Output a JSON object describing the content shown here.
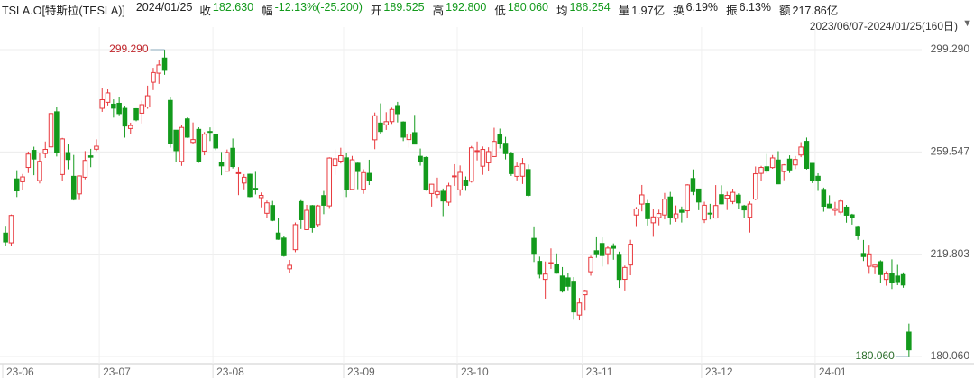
{
  "header": {
    "symbol": "TSLA.O[特斯拉(TESLA)]",
    "date": "2024/01/25",
    "fields": [
      {
        "label": "收",
        "value": "182.630",
        "color": "#139a1c"
      },
      {
        "label": "幅",
        "value": "-12.13%(-25.200)",
        "color": "#139a1c"
      },
      {
        "label": "开",
        "value": "189.525",
        "color": "#139a1c"
      },
      {
        "label": "高",
        "value": "192.800",
        "color": "#139a1c"
      },
      {
        "label": "低",
        "value": "180.060",
        "color": "#139a1c"
      },
      {
        "label": "均",
        "value": "186.254",
        "color": "#139a1c"
      },
      {
        "label": "量",
        "value": "1.97亿",
        "color": "#222222"
      },
      {
        "label": "换",
        "value": "6.19%",
        "color": "#222222"
      },
      {
        "label": "振",
        "value": "6.13%",
        "color": "#222222"
      },
      {
        "label": "额",
        "value": "217.86亿",
        "color": "#222222"
      }
    ],
    "range": "2023/06/07-2024/01/25(160日)"
  },
  "chart_data": {
    "type": "candlestick",
    "categories": [
      "23-06",
      null,
      null,
      null,
      null,
      null,
      null,
      null,
      null,
      null,
      null,
      null,
      null,
      null,
      null,
      null,
      null,
      "23-07",
      null,
      null,
      null,
      null,
      null,
      null,
      null,
      null,
      null,
      null,
      null,
      null,
      null,
      null,
      null,
      null,
      null,
      null,
      null,
      "23-08",
      null,
      null,
      null,
      null,
      null,
      null,
      null,
      null,
      null,
      null,
      null,
      null,
      null,
      null,
      null,
      null,
      null,
      null,
      null,
      null,
      null,
      null,
      "23-09",
      null,
      null,
      null,
      null,
      null,
      null,
      null,
      null,
      null,
      null,
      null,
      null,
      null,
      null,
      null,
      null,
      null,
      null,
      null,
      "23-10",
      null,
      null,
      null,
      null,
      null,
      null,
      null,
      null,
      null,
      null,
      null,
      null,
      null,
      null,
      null,
      null,
      null,
      null,
      null,
      null,
      null,
      "23-11",
      null,
      null,
      null,
      null,
      null,
      null,
      null,
      null,
      null,
      null,
      null,
      null,
      null,
      null,
      null,
      null,
      null,
      null,
      null,
      null,
      "23-12",
      null,
      null,
      null,
      null,
      null,
      null,
      null,
      null,
      null,
      null,
      null,
      null,
      null,
      null,
      null,
      null,
      null,
      null,
      null,
      "24-01",
      null,
      null,
      null,
      null,
      null,
      null,
      null,
      null,
      null,
      null,
      null,
      null,
      null,
      null,
      null,
      null
    ],
    "open": [
      228.0,
      224.22,
      249.07,
      247.94,
      253.51,
      260.17,
      248.4,
      258.92,
      261.5,
      275.13,
      250.77,
      259.29,
      250.07,
      243.24,
      249.7,
      258.03,
      260.6,
      276.49,
      278.82,
      278.09,
      278.43,
      276.47,
      268.65,
      276.33,
      274.59,
      277.01,
      286.63,
      290.15,
      296.04,
      279.56,
      268.0,
      255.85,
      272.38,
      263.25,
      268.31,
      259.86,
      267.48,
      266.26,
      255.57,
      252.04,
      260.97,
      251.45,
      247.45,
      250.87,
      245.4,
      241.77,
      235.7,
      238.73,
      228.02,
      226.06,
      214.12,
      221.55,
      240.25,
      229.34,
      238.66,
      231.31,
      242.58,
      238.58,
      254.2,
      255.98,
      257.26,
      245.0,
      255.14,
      245.07,
      251.22,
      264.27,
      270.76,
      270.07,
      271.32,
      277.55,
      271.16,
      264.35,
      267.04,
      257.85,
      257.4,
      243.38,
      242.98,
      244.26,
      240.02,
      250.0,
      244.81,
      248.61,
      248.14,
      260.0,
      253.98,
      255.31,
      257.75,
      266.2,
      262.92,
      258.9,
      250.05,
      250.1,
      252.7,
      225.95,
      217.01,
      210.0,
      216.5,
      215.88,
      211.32,
      210.6,
      209.28,
      196.12,
      204.04,
      212.97,
      221.15,
      223.98,
      219.98,
      223.15,
      219.75,
      210.03,
      215.6,
      235.03,
      239.29,
      239.49,
      232.0,
      234.04,
      235.04,
      242.04,
      233.75,
      236.89,
      236.68,
      249.21,
      245.14,
      233.14,
      235.75,
      233.87,
      242.92,
      241.55,
      240.27,
      242.74,
      238.55,
      234.19,
      241.22,
      251.21,
      253.78,
      253.48,
      256.41,
      251.9,
      256.76,
      254.49,
      258.35,
      263.66,
      255.1,
      250.08,
      244.98,
      239.25,
      236.86,
      236.14,
      238.11,
      235.1,
      230.57,
      220.08,
      215.1,
      214.86,
      216.88,
      209.99,
      212.26,
      211.3,
      211.88,
      189.525
    ],
    "high": [
      230.83,
      235.23,
      252.42,
      250.97,
      259.68,
      261.57,
      258.95,
      263.6,
      274.75,
      276.99,
      265.0,
      262.45,
      258.37,
      250.39,
      259.88,
      260.74,
      264.45,
      284.25,
      283.85,
      279.97,
      280.78,
      277.52,
      270.9,
      276.52,
      279.45,
      285.3,
      292.23,
      295.26,
      299.29,
      280.93,
      268.0,
      269.85,
      272.9,
      271.0,
      269.13,
      267.25,
      269.08,
      266.47,
      259.52,
      260.49,
      264.77,
      253.65,
      250.92,
      251.1,
      251.8,
      243.79,
      240.66,
      240.5,
      233.97,
      226.74,
      217.58,
      232.13,
      240.82,
      238.98,
      238.92,
      239.0,
      244.38,
      257.48,
      260.51,
      261.18,
      259.08,
      258.0,
      255.39,
      252.81,
      256.52,
      274.85,
      278.39,
      274.98,
      276.71,
      278.98,
      271.44,
      267.85,
      273.93,
      260.86,
      257.79,
      247.1,
      249.55,
      245.33,
      247.55,
      254.77,
      254.28,
      250.02,
      261.86,
      263.6,
      261.65,
      261.36,
      268.94,
      268.6,
      265.41,
      259.6,
      255.4,
      257.18,
      254.63,
      230.61,
      218.86,
      216.98,
      222.05,
      220.1,
      214.8,
      212.41,
      210.88,
      202.8,
      205.99,
      219.2,
      226.37,
      226.32,
      223.12,
      224.0,
      220.8,
      215.38,
      225.4,
      238.14,
      246.7,
      240.88,
      237.39,
      237.1,
      243.62,
      244.01,
      238.75,
      238.33,
      247.0,
      252.75,
      245.22,
      240.19,
      239.37,
      246.66,
      246.57,
      244.08,
      245.27,
      243.44,
      238.99,
      240.3,
      253.88,
      254.13,
      258.74,
      258.34,
      259.84,
      254.8,
      258.22,
      257.97,
      263.34,
      265.13,
      255.19,
      251.25,
      245.68,
      242.7,
      240.12,
      241.25,
      238.96,
      235.5,
      230.93,
      225.34,
      223.49,
      215.67,
      217.45,
      213.19,
      217.8,
      215.65,
      212.73,
      192.8
    ],
    "low": [
      223.2,
      223.01,
      242.02,
      244.59,
      251.34,
      250.5,
      247.29,
      257.21,
      261.12,
      257.78,
      248.25,
      252.8,
      240.7,
      240.85,
      248.89,
      253.61,
      259.89,
      275.11,
      277.6,
      272.88,
      273.77,
      265.1,
      266.37,
      271.46,
      270.6,
      276.31,
      283.57,
      286.01,
      289.52,
      261.2,
      255.8,
      254.12,
      265.0,
      262.6,
      255.3,
      258.23,
      263.78,
      260.25,
      250.49,
      252.0,
      253.11,
      242.76,
      245.01,
      241.9,
      243.0,
      238.02,
      233.75,
      232.61,
      225.38,
      218.83,
      212.36,
      220.58,
      229.55,
      229.29,
      228.18,
      230.35,
      235.35,
      237.77,
      250.59,
      255.05,
      242.01,
      244.86,
      245.06,
      243.27,
      246.67,
      260.61,
      266.6,
      268.1,
      270.42,
      271.0,
      263.76,
      261.2,
      262.46,
      254.21,
      244.48,
      238.31,
      241.66,
      234.58,
      238.65,
      246.35,
      242.62,
      244.45,
      247.6,
      256.25,
      250.65,
      252.05,
      257.65,
      260.9,
      256.63,
      250.22,
      248.48,
      247.08,
      242.08,
      216.78,
      210.42,
      202.51,
      214.11,
      212.2,
      204.88,
      205.77,
      194.67,
      194.07,
      197.85,
      211.45,
      218.4,
      215.0,
      215.72,
      217.64,
      206.68,
      205.69,
      211.61,
      230.72,
      236.45,
      230.96,
      226.54,
      231.02,
      233.34,
      231.4,
      232.33,
      232.1,
      234.01,
      242.76,
      236.91,
      231.9,
      233.29,
      233.7,
      239.17,
      236.98,
      239.27,
      237.45,
      233.87,
      228.2,
      240.79,
      248.3,
      251.36,
      253.01,
      247.0,
      248.55,
      251.37,
      252.91,
      257.52,
      252.71,
      247.43,
      244.41,
      236.32,
      237.73,
      234.9,
      235.3,
      232.04,
      231.29,
      225.37,
      217.15,
      212.18,
      212.01,
      208.74,
      207.56,
      206.27,
      207.75,
      206.77,
      180.06
    ],
    "close": [
      224.57,
      234.86,
      244.4,
      249.83,
      258.71,
      256.79,
      255.9,
      260.54,
      274.45,
      259.46,
      264.61,
      256.6,
      241.05,
      250.21,
      256.24,
      257.5,
      261.77,
      279.82,
      282.48,
      276.54,
      274.43,
      269.61,
      269.79,
      271.99,
      277.9,
      281.38,
      290.38,
      293.34,
      291.26,
      262.9,
      260.02,
      269.06,
      265.28,
      264.35,
      255.71,
      266.44,
      267.43,
      261.07,
      254.11,
      259.32,
      253.86,
      251.45,
      249.7,
      242.19,
      245.34,
      242.65,
      239.76,
      232.96,
      225.6,
      219.22,
      215.49,
      231.28,
      233.19,
      236.86,
      230.04,
      238.59,
      238.82,
      257.18,
      256.9,
      258.08,
      245.01,
      256.49,
      251.92,
      251.49,
      248.5,
      273.58,
      267.48,
      271.3,
      276.04,
      274.39,
      265.28,
      266.5,
      262.59,
      255.7,
      244.88,
      246.99,
      244.12,
      240.5,
      246.38,
      250.22,
      251.6,
      246.53,
      261.16,
      260.05,
      260.53,
      259.67,
      263.62,
      262.99,
      258.87,
      251.12,
      253.92,
      254.85,
      242.68,
      220.11,
      211.99,
      212.08,
      216.52,
      212.42,
      205.76,
      207.3,
      197.36,
      200.84,
      205.66,
      218.51,
      219.96,
      219.27,
      222.18,
      222.11,
      209.98,
      214.65,
      223.71,
      237.41,
      242.84,
      233.59,
      234.3,
      235.6,
      241.2,
      234.21,
      235.45,
      236.08,
      246.72,
      244.14,
      240.08,
      238.83,
      235.58,
      238.72,
      239.37,
      242.64,
      243.84,
      239.74,
      237.01,
      239.29,
      251.05,
      253.5,
      252.08,
      257.22,
      247.14,
      254.5,
      252.54,
      256.61,
      261.44,
      253.18,
      248.48,
      248.42,
      238.45,
      237.93,
      237.49,
      240.45,
      234.96,
      233.94,
      227.22,
      218.89,
      219.91,
      215.55,
      211.88,
      212.19,
      208.8,
      209.14,
      207.83,
      182.63
    ],
    "up_color": "#e8383d",
    "down_color": "#139a1c",
    "ylim": [
      178.3,
      305.25
    ],
    "yticks": [
      {
        "value": 180.06,
        "label": "180.060"
      },
      219.803,
      259.547,
      {
        "value": 299.29,
        "label": "299.290"
      }
    ],
    "grid": true,
    "annotations": [
      "299.290",
      "180.060"
    ]
  }
}
